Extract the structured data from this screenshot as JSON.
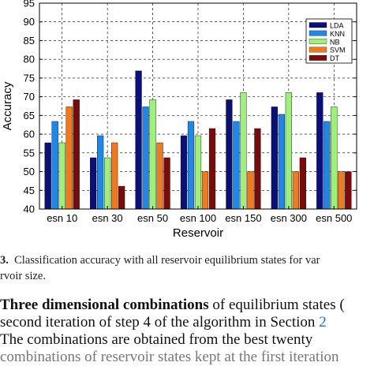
{
  "chart_data": {
    "type": "bar",
    "title": "",
    "xlabel": "Reservoir",
    "ylabel": "Accuracy",
    "ylim": [
      40,
      95
    ],
    "yticks": [
      40,
      45,
      50,
      55,
      60,
      65,
      70,
      75,
      80,
      85,
      90,
      95
    ],
    "grid": true,
    "legend_position": "top-right",
    "categories": [
      "esn 10",
      "esn 30",
      "esn 50",
      "esn 100",
      "esn 150",
      "esn 300",
      "esn 500"
    ],
    "series": [
      {
        "name": "LDA",
        "color": "#0b0f7a",
        "values": [
          57.7,
          53.7,
          76.9,
          59.6,
          69.2,
          67.3,
          71.1
        ]
      },
      {
        "name": "KNN",
        "color": "#1f88e6",
        "values": [
          63.4,
          59.6,
          67.3,
          63.4,
          63.4,
          65.3,
          63.4
        ]
      },
      {
        "name": "NB",
        "color": "#9ff07a",
        "values": [
          57.7,
          53.7,
          69.2,
          59.6,
          71.1,
          71.1,
          67.3
        ]
      },
      {
        "name": "SVM",
        "color": "#f07a1e",
        "values": [
          67.3,
          57.7,
          57.7,
          50.0,
          50.0,
          50.0,
          50.0
        ]
      },
      {
        "name": "DT",
        "color": "#7a0b0b",
        "values": [
          69.2,
          46.1,
          53.7,
          61.5,
          61.5,
          53.7,
          50.0
        ]
      }
    ]
  },
  "caption": {
    "fig_num": "3.",
    "line1": "Classification accuracy with all reservoir equilibrium states for var",
    "line2": "rvoir size."
  },
  "body": {
    "line1_bold": "Three dimensional combinations",
    "line1_rest": " of equilibrium states (",
    "line2_text": "second iteration of step 4 of the algorithm in Section ",
    "line2_link": "2",
    "line3": "The combinations are obtained from the best twenty",
    "line4": "combinations of reservoir states kept at the first iteration"
  }
}
